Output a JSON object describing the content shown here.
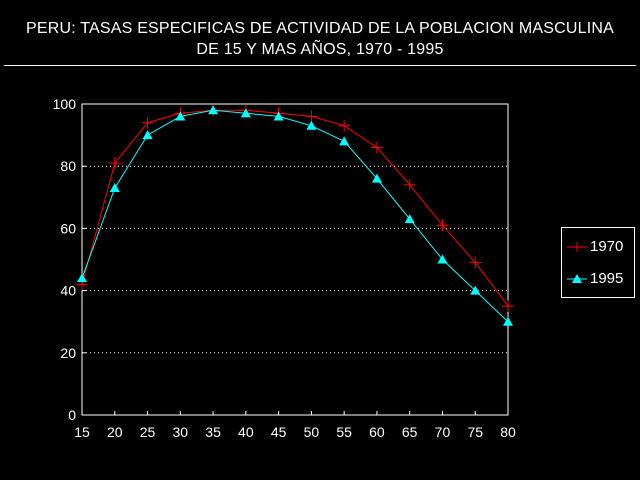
{
  "chart_data": {
    "type": "line",
    "title": "PERU: TASAS ESPECIFICAS DE ACTIVIDAD DE LA POBLACION MASCULINA",
    "subtitle": "DE 15 Y MAS AÑOS, 1970 - 1995",
    "xlabel": "",
    "ylabel": "",
    "x": [
      15,
      20,
      25,
      30,
      35,
      40,
      45,
      50,
      55,
      60,
      65,
      70,
      75,
      80
    ],
    "xticks": [
      "15",
      "20",
      "25",
      "30",
      "35",
      "40",
      "45",
      "50",
      "55",
      "60",
      "65",
      "70",
      "75",
      "80"
    ],
    "yticks": [
      "0",
      "20",
      "40",
      "60",
      "80",
      "100"
    ],
    "ylim": [
      0,
      100
    ],
    "xlim": [
      15,
      80
    ],
    "grid": "horizontal dotted",
    "legend_position": "right",
    "series": [
      {
        "name": "1970",
        "color": "#ff0000",
        "marker": "plus",
        "values": [
          42,
          81,
          94,
          97,
          98,
          98,
          97,
          96,
          93,
          86,
          74,
          61,
          49,
          35
        ]
      },
      {
        "name": "1995",
        "color": "#00ffff",
        "marker": "triangle",
        "values": [
          44,
          73,
          90,
          96,
          98,
          97,
          96,
          93,
          88,
          76,
          63,
          50,
          40,
          30
        ]
      }
    ]
  }
}
